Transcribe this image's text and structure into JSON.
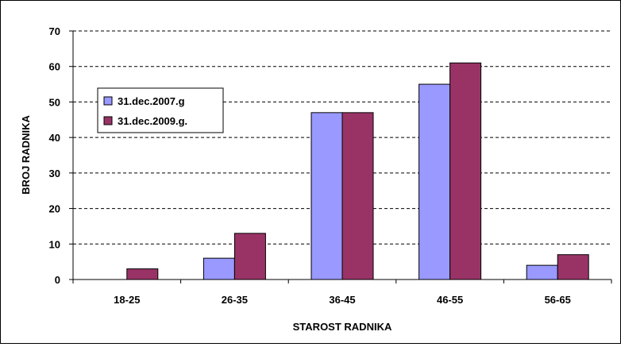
{
  "chart_data": {
    "type": "bar",
    "title": "",
    "xlabel": "STAROST RADNIKA",
    "ylabel": "BROJ RADNIKA",
    "categories": [
      "18-25",
      "26-35",
      "36-45",
      "46-55",
      "56-65"
    ],
    "ylim": [
      0,
      70
    ],
    "yticks": [
      0,
      10,
      20,
      30,
      40,
      50,
      60,
      70
    ],
    "grid": true,
    "legend_position": "left",
    "series": [
      {
        "name": "31.dec.2007.g",
        "color": "#9999ff",
        "values": [
          0,
          6,
          47,
          55,
          4
        ]
      },
      {
        "name": "31.dec.2009.g.",
        "color": "#993366",
        "values": [
          3,
          13,
          47,
          61,
          7
        ]
      }
    ]
  }
}
